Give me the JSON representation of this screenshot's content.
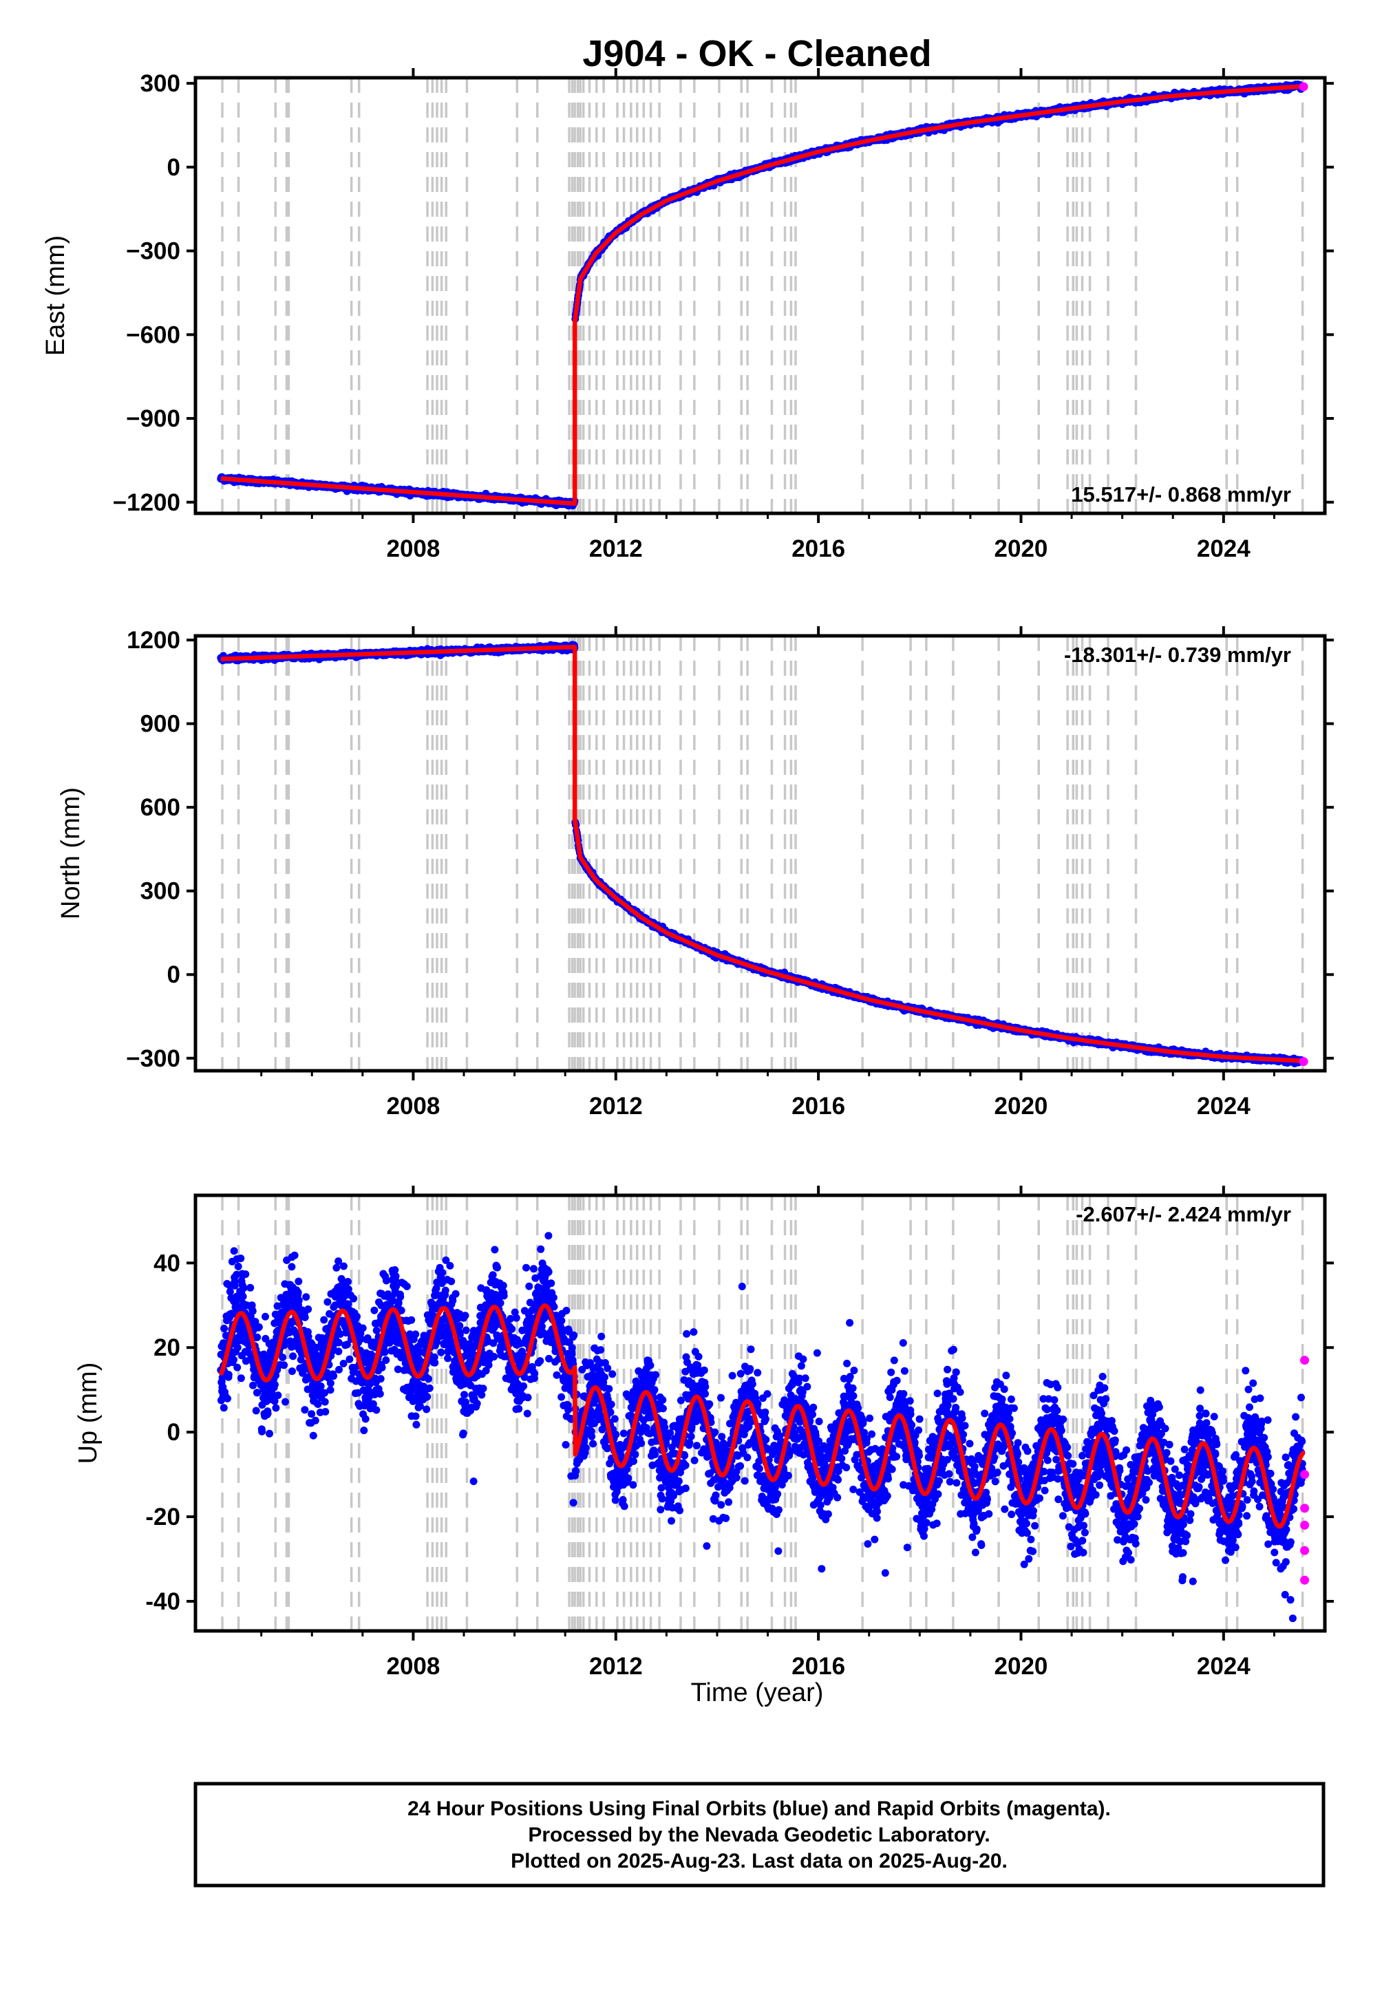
{
  "title": "J904  - OK - Cleaned",
  "colors": {
    "final": "#0000ff",
    "rapid": "#ff00ff",
    "model": "#ff0000",
    "steps": "#c8c8c8"
  },
  "xaxis": {
    "label": "Time (year)",
    "range": [
      2003.7,
      2026.0
    ],
    "ticks": [
      "2008",
      "2012",
      "2016",
      "2020",
      "2024"
    ]
  },
  "step_epochs": [
    2004.23,
    2004.55,
    2005.28,
    2005.5,
    2005.54,
    2006.78,
    2006.93,
    2008.28,
    2008.38,
    2008.47,
    2008.56,
    2008.65,
    2009.06,
    2010.05,
    2010.45,
    2011.08,
    2011.14,
    2011.19,
    2011.25,
    2011.3,
    2011.36,
    2011.48,
    2011.62,
    2011.76,
    2012.03,
    2012.16,
    2012.3,
    2012.42,
    2012.55,
    2012.69,
    2012.86,
    2013.28,
    2013.55,
    2014.04,
    2014.48,
    2014.6,
    2015.08,
    2015.34,
    2015.46,
    2015.55,
    2016.87,
    2017.82,
    2018.13,
    2018.66,
    2019.56,
    2020.35,
    2020.92,
    2021.03,
    2021.1,
    2021.21,
    2021.36,
    2021.72,
    2022.27,
    2024.06,
    2024.27,
    2025.56
  ],
  "chart_data": [
    {
      "type": "scatter",
      "ylabel": "East (mm)",
      "ylim": [
        -1240,
        320
      ],
      "yticks": [
        "300",
        "0",
        "−300",
        "−600",
        "−900",
        "−1200"
      ],
      "rate": "15.517+/- 0.868 mm/yr",
      "model": {
        "pre": {
          "start": [
            2004.2,
            -1115
          ],
          "end": [
            2011.19,
            -1205
          ]
        },
        "coseismic_end": -555,
        "post": [
          [
            2011.19,
            -555
          ],
          [
            2011.3,
            -400
          ],
          [
            2011.6,
            -310
          ],
          [
            2012.0,
            -235
          ],
          [
            2012.5,
            -170
          ],
          [
            2013.0,
            -120
          ],
          [
            2014.0,
            -50
          ],
          [
            2015.0,
            5
          ],
          [
            2016.0,
            55
          ],
          [
            2017.0,
            95
          ],
          [
            2018.0,
            130
          ],
          [
            2019.0,
            160
          ],
          [
            2020.0,
            185
          ],
          [
            2021.0,
            210
          ],
          [
            2022.0,
            235
          ],
          [
            2023.0,
            255
          ],
          [
            2024.0,
            270
          ],
          [
            2025.6,
            290
          ]
        ]
      },
      "rapid_points": [
        [
          2025.58,
          288
        ]
      ]
    },
    {
      "type": "scatter",
      "ylabel": "North (mm)",
      "ylim": [
        -345,
        1215
      ],
      "yticks": [
        "1200",
        "900",
        "600",
        "300",
        "0",
        "−300"
      ],
      "rate": "-18.301+/- 0.739 mm/yr",
      "model": {
        "pre": {
          "start": [
            2004.2,
            1132
          ],
          "end": [
            2011.19,
            1175
          ]
        },
        "coseismic_end": 560,
        "post": [
          [
            2011.19,
            560
          ],
          [
            2011.3,
            420
          ],
          [
            2011.6,
            340
          ],
          [
            2012.0,
            275
          ],
          [
            2012.5,
            205
          ],
          [
            2013.0,
            150
          ],
          [
            2014.0,
            70
          ],
          [
            2015.0,
            10
          ],
          [
            2016.0,
            -40
          ],
          [
            2017.0,
            -90
          ],
          [
            2018.0,
            -130
          ],
          [
            2019.0,
            -165
          ],
          [
            2020.0,
            -200
          ],
          [
            2021.0,
            -230
          ],
          [
            2022.0,
            -255
          ],
          [
            2023.0,
            -278
          ],
          [
            2024.0,
            -295
          ],
          [
            2025.6,
            -310
          ]
        ]
      },
      "rapid_points": [
        [
          2025.58,
          -312
        ]
      ]
    },
    {
      "type": "scatter",
      "ylabel": "Up (mm)",
      "ylim": [
        -47,
        56
      ],
      "yticks": [
        "40",
        "20",
        "0",
        "-20",
        "-40"
      ],
      "rate": "-2.607+/- 2.424 mm/yr",
      "model": {
        "segments": [
          {
            "x0": 2004.2,
            "x1": 2011.19,
            "base": 20,
            "trend": 0.3,
            "amp": 8,
            "phase": 2006.6
          },
          {
            "x0": 2011.19,
            "x1": 2025.6,
            "base": 2,
            "trend": -1.1,
            "amp": 9,
            "phase": 2012.6
          }
        ]
      },
      "rapid_points": [
        [
          2025.6,
          17
        ],
        [
          2025.6,
          -10
        ],
        [
          2025.6,
          -18
        ],
        [
          2025.6,
          -22
        ],
        [
          2025.6,
          -28
        ],
        [
          2025.6,
          -35
        ]
      ]
    }
  ],
  "footer": [
    "24 Hour Positions Using Final Orbits (blue) and Rapid Orbits (magenta).",
    "Processed by the Nevada Geodetic Laboratory.",
    "Plotted on 2025-Aug-23. Last data on 2025-Aug-20."
  ]
}
